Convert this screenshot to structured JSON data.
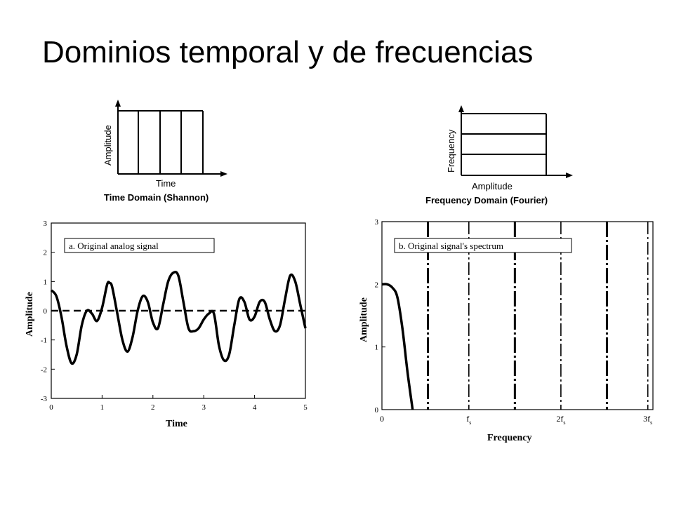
{
  "title": "Dominios temporal y de frecuencias",
  "time_domain": {
    "y_label": "Amplitude",
    "x_label": "Time",
    "caption": "Time Domain (Shannon)"
  },
  "frequency_domain": {
    "y_label": "Frequency",
    "x_label": "Amplitude",
    "caption": "Frequency Domain (Fourier)"
  },
  "chart_data": [
    {
      "type": "line",
      "title": "a.  Original analog signal",
      "xlabel": "Time",
      "ylabel": "Amplitude",
      "xlim": [
        0,
        5
      ],
      "ylim": [
        -3,
        3
      ],
      "x_ticks": [
        "0",
        "1",
        "2",
        "3",
        "4",
        "5"
      ],
      "y_ticks": [
        "3",
        "2",
        "1",
        "0",
        "-1",
        "-2",
        "-3"
      ],
      "x": [
        0,
        0.1,
        0.2,
        0.3,
        0.4,
        0.5,
        0.6,
        0.7,
        0.8,
        0.9,
        1.0,
        1.1,
        1.15,
        1.2,
        1.3,
        1.4,
        1.5,
        1.6,
        1.7,
        1.8,
        1.9,
        2.0,
        2.1,
        2.2,
        2.3,
        2.4,
        2.5,
        2.6,
        2.7,
        2.8,
        2.9,
        3.0,
        3.1,
        3.2,
        3.3,
        3.4,
        3.5,
        3.6,
        3.7,
        3.8,
        3.9,
        4.0,
        4.1,
        4.2,
        4.3,
        4.4,
        4.5,
        4.6,
        4.7,
        4.8,
        4.9,
        5.0
      ],
      "y": [
        0.7,
        0.5,
        -0.2,
        -1.2,
        -1.8,
        -1.5,
        -0.5,
        0.0,
        -0.1,
        -0.35,
        0.1,
        0.9,
        0.95,
        0.8,
        -0.1,
        -1.0,
        -1.4,
        -0.9,
        0.0,
        0.5,
        0.3,
        -0.4,
        -0.6,
        0.2,
        1.0,
        1.3,
        1.2,
        0.3,
        -0.6,
        -0.7,
        -0.6,
        -0.3,
        -0.1,
        -0.1,
        -1.2,
        -1.7,
        -1.5,
        -0.5,
        0.4,
        0.3,
        -0.3,
        -0.2,
        0.3,
        0.3,
        -0.3,
        -0.7,
        -0.5,
        0.4,
        1.2,
        1.0,
        0.2,
        -0.6
      ],
      "zero_line": "dashed"
    },
    {
      "type": "line",
      "title": "b.  Original signal's spectrum",
      "xlabel": "Frequency",
      "ylabel": "Amplitude",
      "xlim": [
        0,
        0.53
      ],
      "ylim": [
        0,
        3
      ],
      "x_ticks": [
        {
          "main": "0",
          "sub": ""
        },
        {
          "main": "f",
          "sub": "s"
        },
        {
          "main": "2f",
          "sub": "s"
        },
        {
          "main": "3f",
          "sub": "s"
        }
      ],
      "y_ticks": [
        "3",
        "2",
        "1",
        "0"
      ],
      "x": [
        0,
        0.01,
        0.02,
        0.03,
        0.04,
        0.05,
        0.06
      ],
      "y": [
        2.0,
        2.0,
        1.95,
        1.8,
        1.3,
        0.6,
        0.0
      ],
      "vertical_lines": [
        {
          "x": 0.09,
          "style": "dash-dot-heavy"
        },
        {
          "x": 0.17,
          "style": "dash-dot"
        },
        {
          "x": 0.26,
          "style": "dash-dot-heavy"
        },
        {
          "x": 0.35,
          "style": "dash-dot"
        },
        {
          "x": 0.44,
          "style": "dash-dot-heavy"
        },
        {
          "x": 0.52,
          "style": "dash-dot"
        }
      ]
    }
  ]
}
